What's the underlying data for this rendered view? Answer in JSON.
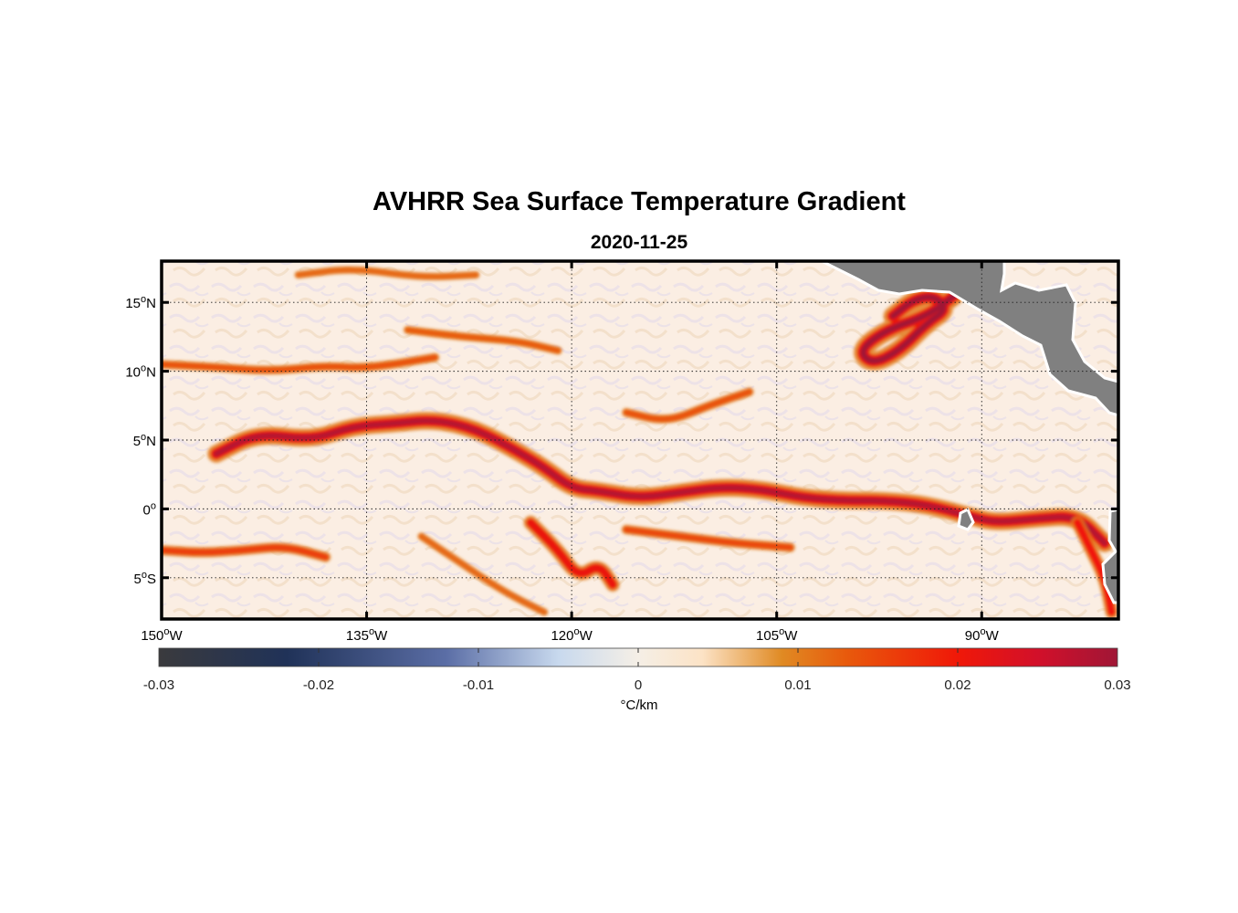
{
  "title": "AVHRR Sea Surface Temperature Gradient",
  "subtitle": "2020-11-25",
  "map": {
    "lon_ticks": [
      {
        "value": -150,
        "label": "150",
        "sup": "o",
        "hem": "W"
      },
      {
        "value": -135,
        "label": "135",
        "sup": "o",
        "hem": "W"
      },
      {
        "value": -120,
        "label": "120",
        "sup": "o",
        "hem": "W"
      },
      {
        "value": -105,
        "label": "105",
        "sup": "o",
        "hem": "W"
      },
      {
        "value": -90,
        "label": "90",
        "sup": "o",
        "hem": "W"
      }
    ],
    "lat_ticks": [
      {
        "value": 15,
        "label": "15",
        "sup": "o",
        "hem": "N"
      },
      {
        "value": 10,
        "label": "10",
        "sup": "o",
        "hem": "N"
      },
      {
        "value": 5,
        "label": "5",
        "sup": "o",
        "hem": "N"
      },
      {
        "value": 0,
        "label": "0",
        "sup": "o",
        "hem": ""
      },
      {
        "value": -5,
        "label": "5",
        "sup": "o",
        "hem": "S"
      }
    ],
    "lon_range": [
      -150,
      -80
    ],
    "lat_range": [
      -8,
      18
    ],
    "grid": true,
    "land_color": "#808080",
    "background_color": "#fbeee3"
  },
  "colorbar": {
    "ticks": [
      "-0.03",
      "-0.02",
      "-0.01",
      "0",
      "0.01",
      "0.02",
      "0.03"
    ],
    "range": [
      -0.03,
      0.03
    ],
    "label": "°C/km",
    "stops": [
      {
        "v": -0.03,
        "c": "#3a3a3d"
      },
      {
        "v": -0.022,
        "c": "#203258"
      },
      {
        "v": -0.012,
        "c": "#5b6ea6"
      },
      {
        "v": -0.005,
        "c": "#c8d9ee"
      },
      {
        "v": 0.0,
        "c": "#f5efe6"
      },
      {
        "v": 0.004,
        "c": "#fce3c6"
      },
      {
        "v": 0.009,
        "c": "#e08a23"
      },
      {
        "v": 0.013,
        "c": "#e85a0c"
      },
      {
        "v": 0.02,
        "c": "#f01808"
      },
      {
        "v": 0.025,
        "c": "#d2102a"
      },
      {
        "v": 0.03,
        "c": "#a01636"
      }
    ]
  },
  "fronts": [
    {
      "name": "equatorial-front",
      "strength": 0.028,
      "path": [
        [
          -146,
          4
        ],
        [
          -143,
          5.5
        ],
        [
          -139,
          5
        ],
        [
          -136,
          6
        ],
        [
          -133,
          6.2
        ],
        [
          -130,
          6.5
        ],
        [
          -127,
          5.8
        ],
        [
          -124,
          4.2
        ],
        [
          -122,
          3
        ],
        [
          -120,
          1.5
        ],
        [
          -118,
          1.3
        ],
        [
          -115,
          0.8
        ],
        [
          -112,
          1.2
        ],
        [
          -109,
          1.6
        ],
        [
          -106,
          1.4
        ],
        [
          -103,
          0.8
        ],
        [
          -100,
          0.6
        ],
        [
          -97,
          0.6
        ],
        [
          -94,
          0.3
        ],
        [
          -91,
          -0.5
        ],
        [
          -89,
          -1
        ],
        [
          -86,
          -0.7
        ],
        [
          -83,
          -0.5
        ],
        [
          -81,
          -2.5
        ]
      ]
    },
    {
      "name": "tehuantepec-eddy",
      "strength": 0.03,
      "path": [
        [
          -92,
          15.5
        ],
        [
          -94,
          14
        ],
        [
          -97,
          13
        ],
        [
          -99,
          11.5
        ],
        [
          -98,
          10.5
        ],
        [
          -96,
          11.5
        ],
        [
          -94,
          13.5
        ],
        [
          -92.5,
          14.5
        ],
        [
          -93.5,
          15.5
        ],
        [
          -95,
          15.2
        ],
        [
          -96.5,
          14
        ]
      ]
    },
    {
      "name": "north-front-a",
      "strength": 0.014,
      "path": [
        [
          -150,
          10.5
        ],
        [
          -146,
          10.3
        ],
        [
          -142,
          10
        ],
        [
          -138,
          10.4
        ],
        [
          -135,
          10.2
        ],
        [
          -130,
          11
        ]
      ]
    },
    {
      "name": "north-front-b",
      "strength": 0.013,
      "path": [
        [
          -132,
          13
        ],
        [
          -128,
          12.5
        ],
        [
          -124,
          12.2
        ],
        [
          -121,
          11.5
        ]
      ]
    },
    {
      "name": "north-front-c",
      "strength": 0.012,
      "path": [
        [
          -140,
          17
        ],
        [
          -136,
          17.5
        ],
        [
          -131,
          16.8
        ],
        [
          -127,
          17
        ]
      ]
    },
    {
      "name": "south-front-a",
      "strength": 0.016,
      "path": [
        [
          -150,
          -3
        ],
        [
          -147,
          -3.2
        ],
        [
          -144,
          -3
        ],
        [
          -141,
          -2.7
        ],
        [
          -138,
          -3.5
        ]
      ]
    },
    {
      "name": "south-front-b",
      "strength": 0.022,
      "path": [
        [
          -123,
          -1
        ],
        [
          -121,
          -3
        ],
        [
          -119.5,
          -5
        ],
        [
          -118,
          -4
        ],
        [
          -117,
          -5.5
        ]
      ]
    },
    {
      "name": "south-front-c",
      "strength": 0.015,
      "path": [
        [
          -116,
          -1.5
        ],
        [
          -112,
          -2
        ],
        [
          -108,
          -2.5
        ],
        [
          -104,
          -2.8
        ]
      ]
    },
    {
      "name": "south-front-d",
      "strength": 0.012,
      "path": [
        [
          -131,
          -2
        ],
        [
          -128,
          -4
        ],
        [
          -125,
          -6
        ],
        [
          -122,
          -7.5
        ]
      ]
    },
    {
      "name": "central-front",
      "strength": 0.014,
      "path": [
        [
          -116,
          7
        ],
        [
          -113,
          6.3
        ],
        [
          -110,
          7.5
        ],
        [
          -107,
          8.5
        ]
      ]
    },
    {
      "name": "east-front",
      "strength": 0.02,
      "path": [
        [
          -83,
          -1
        ],
        [
          -82,
          -3
        ],
        [
          -81,
          -5
        ],
        [
          -80.5,
          -7.5
        ]
      ]
    }
  ],
  "islands": [
    {
      "name": "galapagos",
      "lon": -91.2,
      "lat": -0.5
    }
  ]
}
